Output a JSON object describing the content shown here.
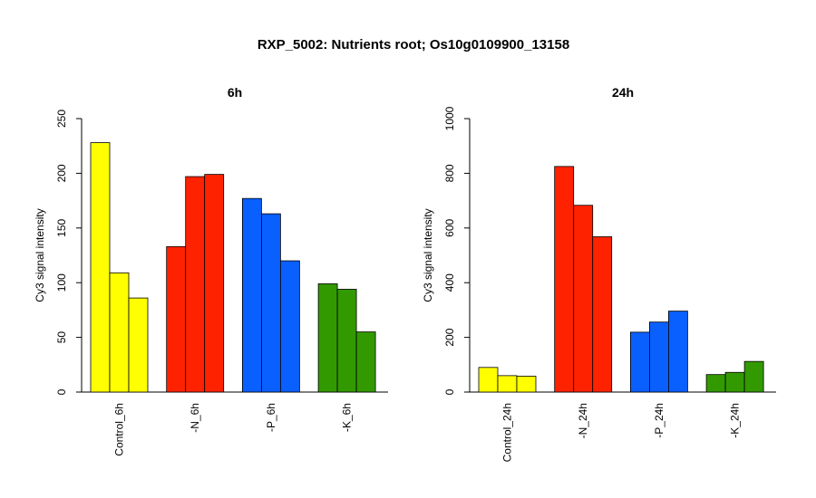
{
  "figure": {
    "title": "RXP_5002: Nutrients root; Os10g0109900_13158"
  },
  "chart_data": [
    {
      "type": "bar",
      "title": "6h",
      "xlabel": "",
      "ylabel": "Cy3 signal intensity",
      "ylim": [
        0,
        250
      ],
      "yticks": [
        0,
        50,
        100,
        150,
        200,
        250
      ],
      "categories": [
        "Control_6h",
        "-N_6h",
        "-P_6h",
        "-K_6h"
      ],
      "group_colors": [
        "#ffff00",
        "#ff2200",
        "#0a5fff",
        "#339900"
      ],
      "values": [
        [
          228,
          109,
          86
        ],
        [
          133,
          197,
          199
        ],
        [
          177,
          163,
          120
        ],
        [
          99,
          94,
          55
        ]
      ],
      "grid": false,
      "legend": "none"
    },
    {
      "type": "bar",
      "title": "24h",
      "xlabel": "",
      "ylabel": "Cy3 signal intensity",
      "ylim": [
        0,
        1000
      ],
      "yticks": [
        0,
        200,
        400,
        600,
        800,
        1000
      ],
      "categories": [
        "Control_24h",
        "-N_24h",
        "-P_24h",
        "-K_24h"
      ],
      "group_colors": [
        "#ffff00",
        "#ff2200",
        "#0a5fff",
        "#339900"
      ],
      "values": [
        [
          90,
          60,
          58
        ],
        [
          825,
          683,
          568
        ],
        [
          219,
          256,
          296
        ],
        [
          64,
          72,
          112
        ]
      ],
      "grid": false,
      "legend": "none"
    }
  ]
}
